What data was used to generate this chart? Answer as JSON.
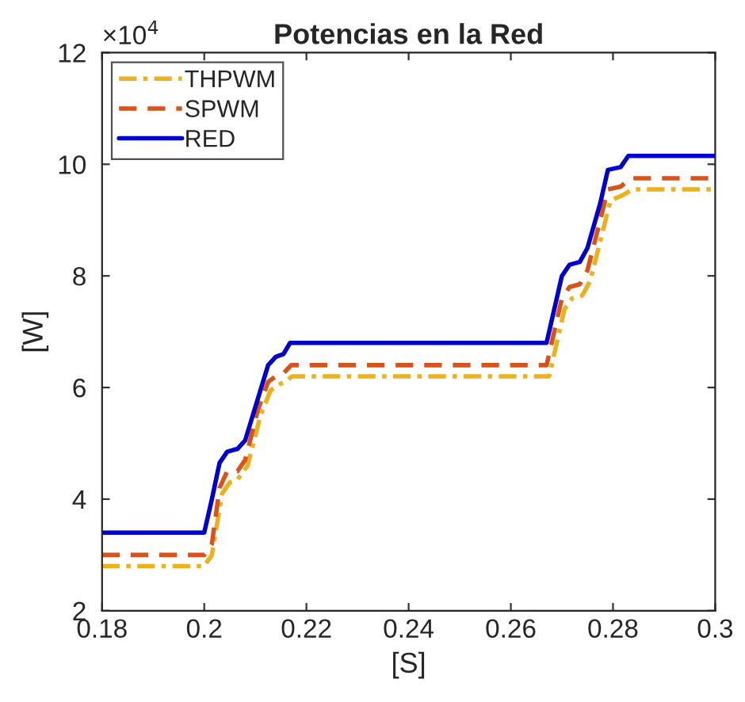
{
  "chart_data": {
    "type": "line",
    "title": "Potencias en la Red",
    "xlabel": "[S]",
    "ylabel": "[W]",
    "annotations": [
      "×10$^{4}$"
    ],
    "xlim": [
      0.18,
      0.3
    ],
    "xticks": [
      0.18,
      0.2,
      0.22,
      0.24,
      0.26,
      0.28,
      0.3
    ],
    "ylim": [
      2,
      12
    ],
    "yticks": [
      2,
      4,
      6,
      8,
      10,
      12
    ],
    "grid": false,
    "legend": "top left",
    "marker": "none",
    "series": [
      {
        "name": "THPWM",
        "color": "#edb120",
        "line_style": "dashdot",
        "x": [
          0.18,
          0.2,
          0.2015,
          0.2035,
          0.205,
          0.2065,
          0.2085,
          0.211,
          0.213,
          0.2145,
          0.2158,
          0.2172,
          0.2675,
          0.269,
          0.2705,
          0.272,
          0.274,
          0.2755,
          0.278,
          0.2795,
          0.282,
          0.2838,
          0.3
        ],
        "values": [
          2.8,
          2.8,
          3.0,
          4.1,
          4.3,
          4.35,
          4.6,
          5.5,
          5.95,
          6.05,
          6.1,
          6.2,
          6.2,
          6.8,
          7.4,
          7.6,
          7.65,
          7.9,
          8.8,
          9.35,
          9.45,
          9.55,
          9.55
        ]
      },
      {
        "name": "SPWM",
        "color": "#d95319",
        "line_style": "dashed",
        "x": [
          0.18,
          0.2,
          0.2015,
          0.203,
          0.2045,
          0.2065,
          0.208,
          0.2105,
          0.2125,
          0.214,
          0.2155,
          0.217,
          0.267,
          0.2685,
          0.27,
          0.2715,
          0.2735,
          0.275,
          0.2775,
          0.279,
          0.2815,
          0.2835,
          0.3
        ],
        "values": [
          3.0,
          3.0,
          3.2,
          4.2,
          4.5,
          4.5,
          4.7,
          5.6,
          6.1,
          6.2,
          6.25,
          6.4,
          6.4,
          7.0,
          7.6,
          7.8,
          7.85,
          8.1,
          9.0,
          9.55,
          9.6,
          9.75,
          9.75
        ]
      },
      {
        "name": "RED",
        "color": "#0000cc",
        "line_style": "solid",
        "x": [
          0.18,
          0.2,
          0.2015,
          0.203,
          0.2045,
          0.2065,
          0.208,
          0.2105,
          0.2125,
          0.214,
          0.2155,
          0.2168,
          0.267,
          0.2685,
          0.27,
          0.2715,
          0.2735,
          0.275,
          0.2775,
          0.279,
          0.2815,
          0.283,
          0.3
        ],
        "values": [
          3.4,
          3.4,
          4.0,
          4.65,
          4.85,
          4.9,
          5.05,
          5.8,
          6.4,
          6.55,
          6.6,
          6.8,
          6.8,
          7.4,
          8.0,
          8.2,
          8.25,
          8.5,
          9.3,
          9.9,
          9.95,
          10.15,
          10.15
        ]
      }
    ]
  }
}
